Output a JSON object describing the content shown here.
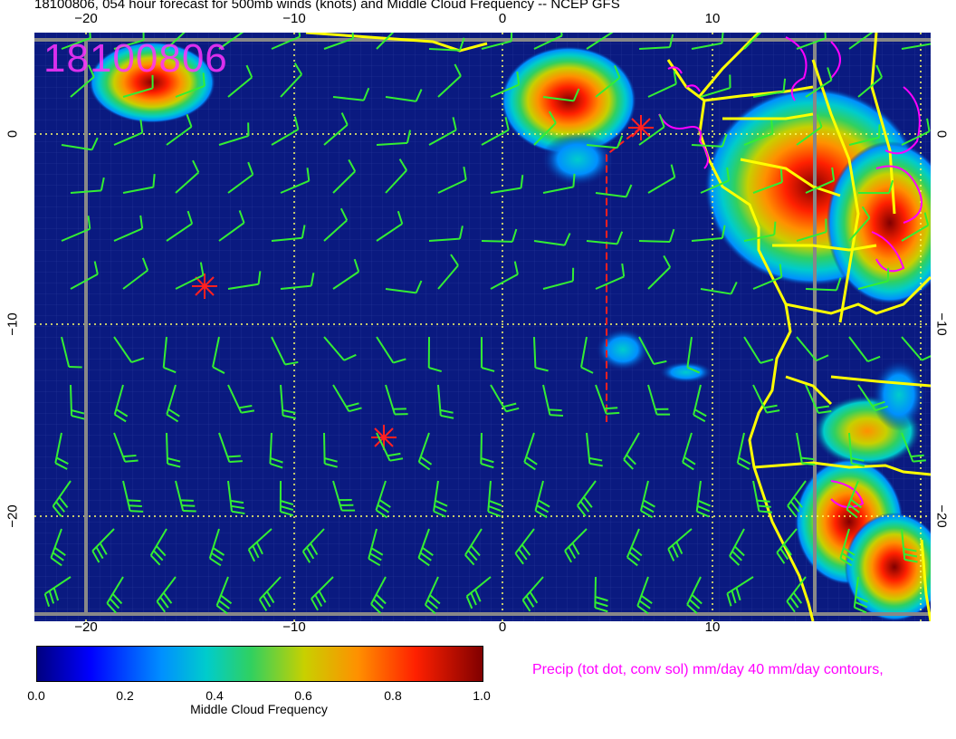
{
  "title": "18100806, 054 hour forecast for 500mb winds (knots) and Middle Cloud Frequency -- NCEP GFS",
  "date_stamp": "18100806",
  "axes": {
    "lon_ticks": [
      "−20",
      "−10",
      "0",
      "10"
    ],
    "lat_ticks": [
      "0",
      "−10",
      "−20"
    ]
  },
  "colorbar": {
    "title": "Middle Cloud Frequency",
    "labels": [
      "0.0",
      "0.2",
      "0.4",
      "0.6",
      "0.8",
      "1.0"
    ],
    "colors": [
      "#000080",
      "#0000ff",
      "#0090ff",
      "#00cccc",
      "#30d060",
      "#c8d000",
      "#ff9000",
      "#ff2000",
      "#800000"
    ]
  },
  "precip_legend": "Precip (tot dot, conv sol) mm/day 40 mm/day contours,",
  "colors": {
    "ocean_background": "#0a1a80",
    "coastline": "#ffff00",
    "wind_barbs": "#33ee33",
    "precip_contours": "#ff00ff",
    "markers": "#ff2020",
    "graticule": "#ffff66"
  }
}
